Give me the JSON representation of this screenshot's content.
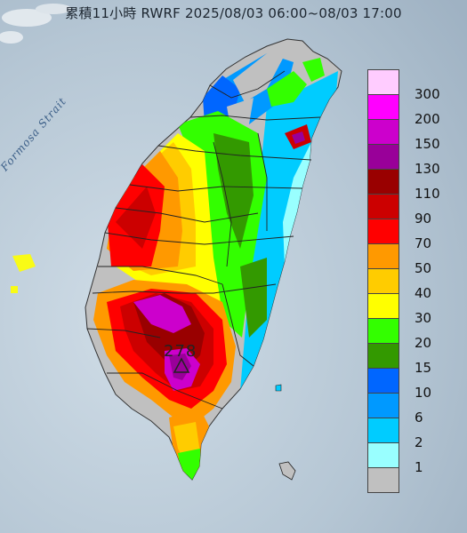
{
  "title": "累積11小時 RWRF 2025/08/03 06:00~08/03 17:00",
  "strait_label": "Formosa Strait",
  "max_value": "278",
  "legend": [
    {
      "label": "300",
      "color": "#ffccff"
    },
    {
      "label": "200",
      "color": "#ff00ff"
    },
    {
      "label": "150",
      "color": "#cc00cc"
    },
    {
      "label": "130",
      "color": "#990099"
    },
    {
      "label": "110",
      "color": "#990000"
    },
    {
      "label": "90",
      "color": "#cc0000"
    },
    {
      "label": "70",
      "color": "#ff0000"
    },
    {
      "label": "50",
      "color": "#ff9900"
    },
    {
      "label": "40",
      "color": "#ffcc00"
    },
    {
      "label": "30",
      "color": "#ffff00"
    },
    {
      "label": "20",
      "color": "#33ff00"
    },
    {
      "label": "15",
      "color": "#339900"
    },
    {
      "label": "10",
      "color": "#0066ff"
    },
    {
      "label": "6",
      "color": "#0099ff"
    },
    {
      "label": "2",
      "color": "#00ccff"
    },
    {
      "label": "1",
      "color": "#99ffff"
    },
    {
      "label": "",
      "color": "#c0c0c0"
    }
  ]
}
